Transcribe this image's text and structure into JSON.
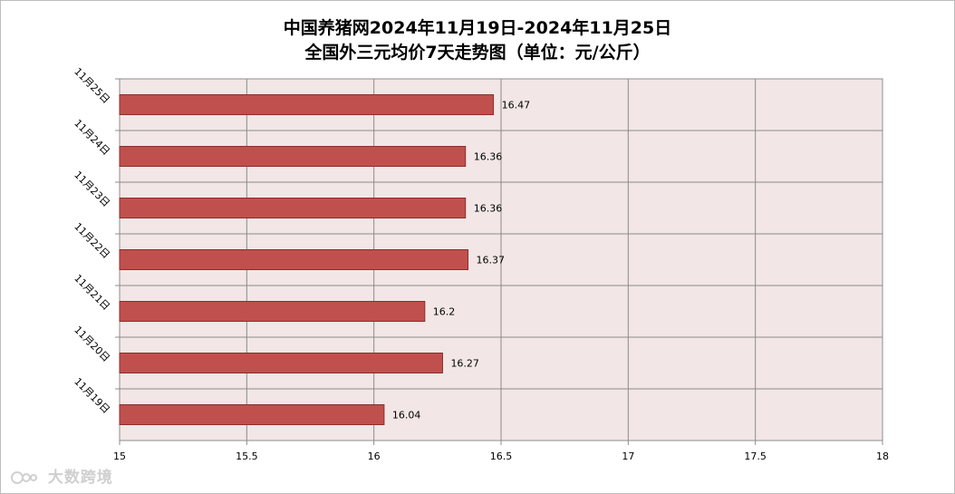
{
  "chart_data": {
    "type": "bar",
    "orientation": "horizontal",
    "title_line1": "中国养猪网2024年11月19日-2024年11月25日",
    "title_line2": "全国外三元均价7天走势图（单位：元/公斤）",
    "categories": [
      "11月25日",
      "11月24日",
      "11月23日",
      "11月22日",
      "11月21日",
      "11月20日",
      "11月19日"
    ],
    "values": [
      16.47,
      16.36,
      16.36,
      16.37,
      16.2,
      16.27,
      16.04
    ],
    "value_labels": [
      "16.47",
      "16.36",
      "16.36",
      "16.37",
      "16.2",
      "16.27",
      "16.04"
    ],
    "xlim": [
      15,
      18
    ],
    "xticks": [
      "15",
      "15.5",
      "16",
      "16.5",
      "17",
      "17.5",
      "18"
    ],
    "grid": true,
    "bar_color": "#c0504d",
    "plot_bg": "#f2e6e6"
  },
  "watermark": {
    "text": "大数跨境",
    "icon": "logo-icon"
  }
}
